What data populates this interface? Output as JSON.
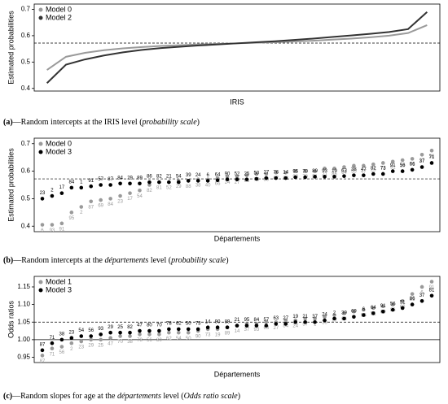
{
  "chart_data": [
    {
      "type": "line",
      "ylabel": "Estimated probabilities",
      "xlabel": "IRIS",
      "caption_label": "(a)",
      "caption": [
        "—Random intercepts at the IRIS level (",
        "probability scale",
        ")"
      ],
      "ylim": [
        0.39,
        0.72
      ],
      "yticks": [
        0.4,
        0.5,
        0.6,
        0.7
      ],
      "legend": "top-left",
      "hlines": [
        {
          "value": 0.572,
          "style": "dashed"
        }
      ],
      "series": [
        {
          "name": "Model 0",
          "color": "#9a9a9a",
          "values": [
            0.47,
            0.52,
            0.535,
            0.545,
            0.552,
            0.557,
            0.561,
            0.564,
            0.567,
            0.569,
            0.571,
            0.573,
            0.575,
            0.578,
            0.581,
            0.585,
            0.589,
            0.594,
            0.6,
            0.61,
            0.64
          ]
        },
        {
          "name": "Model 2",
          "color": "#333333",
          "values": [
            0.42,
            0.49,
            0.51,
            0.525,
            0.537,
            0.546,
            0.553,
            0.558,
            0.563,
            0.567,
            0.571,
            0.575,
            0.579,
            0.584,
            0.589,
            0.595,
            0.601,
            0.607,
            0.614,
            0.625,
            0.69
          ]
        }
      ]
    },
    {
      "type": "dot",
      "ylabel": "Estimated probabilities",
      "xlabel": "Départements",
      "caption_label": "(b)",
      "caption": [
        "—Random intercepts at the ",
        "départements",
        " level (",
        "probability scale",
        ")"
      ],
      "ylim": [
        0.38,
        0.72
      ],
      "yticks": [
        0.4,
        0.5,
        0.6,
        0.7
      ],
      "legend": "top-left",
      "hlines": [
        {
          "value": 0.572,
          "style": "dashed"
        }
      ],
      "series": [
        {
          "name": "Model 0",
          "color": "#9a9a9a",
          "values": [
            0.405,
            0.405,
            0.41,
            0.45,
            0.47,
            0.49,
            0.495,
            0.5,
            0.51,
            0.52,
            0.53,
            0.55,
            0.56,
            0.56,
            0.565,
            0.565,
            0.57,
            0.57,
            0.575,
            0.58,
            0.58,
            0.585,
            0.59,
            0.59,
            0.595,
            0.595,
            0.6,
            0.6,
            0.6,
            0.61,
            0.61,
            0.615,
            0.62,
            0.62,
            0.625,
            0.63,
            0.635,
            0.64,
            0.645,
            0.66,
            0.675
          ],
          "point_labels": [
            "6",
            "93",
            "91",
            "95",
            "2",
            "87",
            "69",
            "84",
            "23",
            "17",
            "54",
            "82",
            "81",
            "52",
            "29",
            "88",
            "38",
            "40",
            "66",
            "24",
            "27",
            "63",
            "76",
            "39",
            "87",
            "82",
            "90",
            "70",
            "51",
            "21",
            "86",
            "64",
            "50",
            "47",
            "25",
            "73",
            "91",
            "19",
            "71",
            "37",
            "56"
          ]
        },
        {
          "name": "Model 3",
          "color": "#000000",
          "values": [
            0.5,
            0.51,
            0.52,
            0.54,
            0.54,
            0.545,
            0.55,
            0.55,
            0.555,
            0.555,
            0.555,
            0.56,
            0.56,
            0.56,
            0.56,
            0.565,
            0.565,
            0.565,
            0.567,
            0.57,
            0.57,
            0.57,
            0.572,
            0.575,
            0.575,
            0.575,
            0.578,
            0.578,
            0.58,
            0.58,
            0.58,
            0.582,
            0.585,
            0.585,
            0.59,
            0.59,
            0.6,
            0.6,
            0.605,
            0.615,
            0.63
          ],
          "point_labels": [
            "23",
            "2",
            "17",
            "84",
            "1",
            "91",
            "57",
            "87",
            "84",
            "29",
            "89",
            "86",
            "82",
            "21",
            "54",
            "39",
            "24",
            "6",
            "64",
            "90",
            "52",
            "25",
            "50",
            "27",
            "76",
            "14",
            "95",
            "70",
            "89",
            "93",
            "19",
            "63",
            "38",
            "47",
            "82",
            "73",
            "91",
            "56",
            "66",
            "37",
            "71"
          ]
        }
      ]
    },
    {
      "type": "dot",
      "ylabel": "Odds ratios",
      "xlabel": "Départements",
      "caption_label": "(c)",
      "caption": [
        "—Random slopes for age at the ",
        "départements",
        " level (",
        "Odds ratio scale",
        ")"
      ],
      "ylim": [
        0.935,
        1.18
      ],
      "yticks": [
        0.95,
        {
          "value": 1.0,
          "label": "1.00"
        },
        1.05,
        {
          "value": 1.1,
          "label": "1.10"
        },
        1.15
      ],
      "legend": "top-left",
      "hlines": [
        {
          "value": 1.0,
          "style": "solid"
        },
        {
          "value": 1.05,
          "style": "dashed"
        }
      ],
      "series": [
        {
          "name": "Model 1",
          "color": "#9a9a9a",
          "values": [
            0.955,
            0.975,
            0.98,
            0.99,
            0.995,
            1.0,
            1.0,
            1.005,
            1.01,
            1.01,
            1.015,
            1.015,
            1.015,
            1.02,
            1.02,
            1.02,
            1.025,
            1.03,
            1.03,
            1.035,
            1.04,
            1.045,
            1.045,
            1.05,
            1.05,
            1.055,
            1.055,
            1.06,
            1.06,
            1.065,
            1.07,
            1.075,
            1.08,
            1.085,
            1.09,
            1.095,
            1.1,
            1.11,
            1.13,
            1.15,
            1.165
          ],
          "point_labels": [
            "87",
            "71",
            "56",
            "2",
            "23",
            "29",
            "25",
            "47",
            "70",
            "38",
            "78",
            "56",
            "80",
            "62",
            "54",
            "50",
            "90",
            "73",
            "19",
            "89",
            "14",
            "37",
            "93",
            "63",
            "27",
            "84",
            "24",
            "57",
            "1",
            "39",
            "17",
            "64",
            "2",
            "95",
            "51",
            "69",
            "86",
            "66",
            "81",
            "6",
            "91"
          ]
        },
        {
          "name": "Model 3",
          "color": "#000000",
          "values": [
            0.97,
            0.99,
            1.0,
            1.005,
            1.01,
            1.01,
            1.015,
            1.02,
            1.02,
            1.02,
            1.025,
            1.025,
            1.025,
            1.03,
            1.03,
            1.03,
            1.03,
            1.035,
            1.035,
            1.035,
            1.04,
            1.04,
            1.04,
            1.04,
            1.045,
            1.045,
            1.05,
            1.05,
            1.05,
            1.055,
            1.06,
            1.06,
            1.065,
            1.07,
            1.075,
            1.08,
            1.085,
            1.09,
            1.1,
            1.11,
            1.125
          ],
          "point_labels": [
            "87",
            "71",
            "38",
            "23",
            "54",
            "56",
            "93",
            "29",
            "25",
            "82",
            "47",
            "80",
            "70",
            "78",
            "62",
            "50",
            "73",
            "14",
            "90",
            "89",
            "21",
            "95",
            "84",
            "57",
            "63",
            "27",
            "19",
            "21",
            "37",
            "24",
            "2",
            "39",
            "69",
            "6",
            "64",
            "91",
            "56",
            "51",
            "86",
            "37",
            "81"
          ]
        }
      ]
    }
  ]
}
